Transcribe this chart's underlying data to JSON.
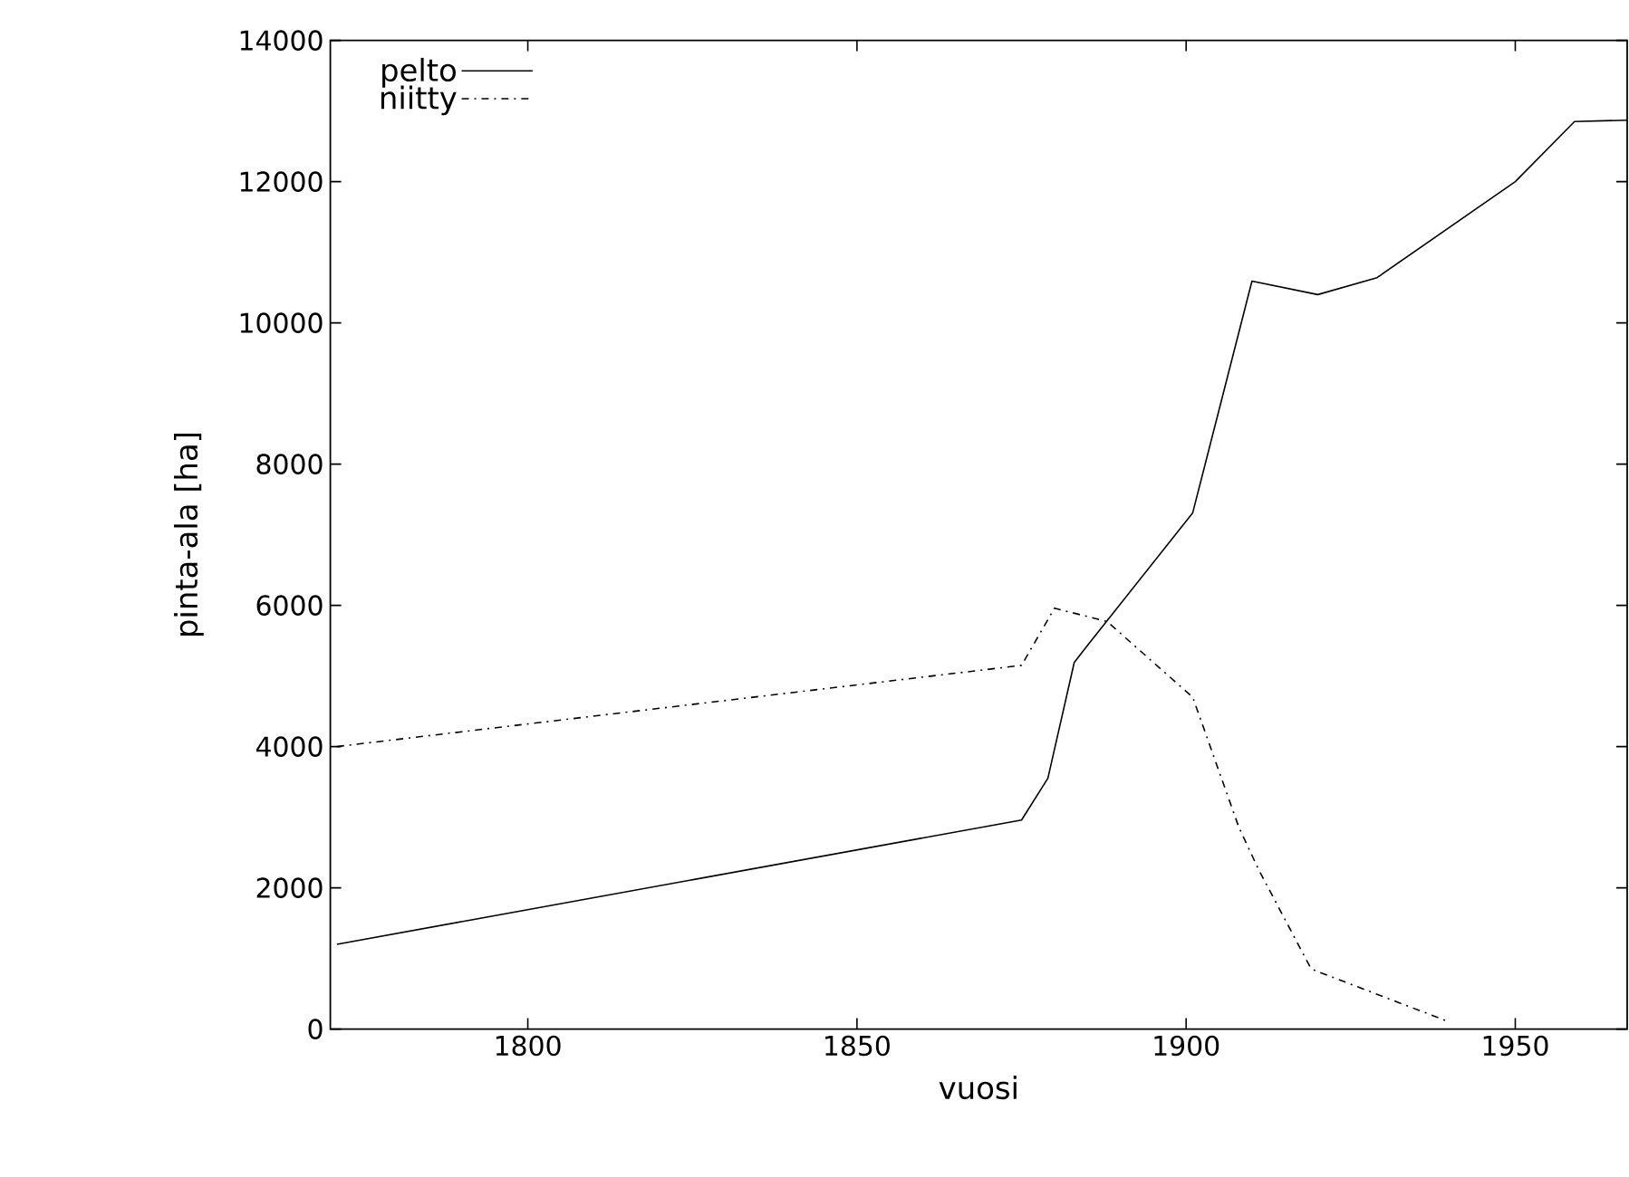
{
  "chart_data": {
    "type": "line",
    "xlabel": "vuosi",
    "ylabel": "pinta-ala [ha]",
    "xlim": [
      1770,
      1967
    ],
    "ylim": [
      0,
      14000
    ],
    "xticks": [
      1800,
      1850,
      1900,
      1950
    ],
    "yticks": [
      0,
      2000,
      4000,
      6000,
      8000,
      10000,
      12000,
      14000
    ],
    "grid": false,
    "legend": "top left",
    "marker": "none",
    "series": [
      {
        "name": "pelto",
        "color": "#000000",
        "line_style": "solid",
        "x": [
          1771,
          1875,
          1879,
          1883,
          1885,
          1901,
          1910,
          1920,
          1929,
          1950,
          1959,
          1967
        ],
        "values": [
          1200,
          2960,
          3550,
          5190,
          5430,
          7310,
          10590,
          10400,
          10640,
          12000,
          12850,
          12870
        ]
      },
      {
        "name": "niitty",
        "color": "#000000",
        "line_style": "dashdotted",
        "x": [
          1771,
          1875,
          1880,
          1888,
          1901,
          1908,
          1911,
          1919,
          1940
        ],
        "values": [
          4000,
          5150,
          5960,
          5770,
          4700,
          2860,
          2260,
          850,
          100
        ]
      }
    ]
  }
}
